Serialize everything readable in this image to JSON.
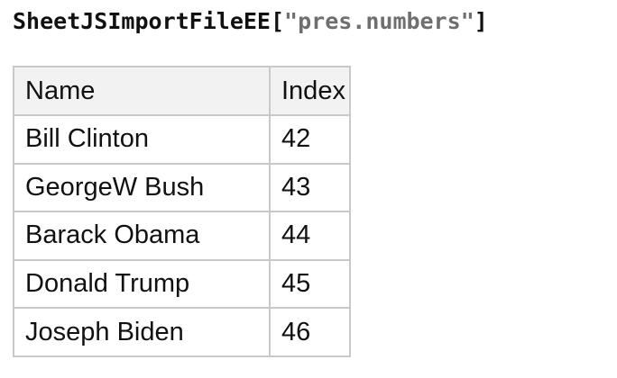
{
  "title": {
    "prefix": "SheetJSImportFileEE",
    "bracket_open": "[",
    "string_value": "\"pres.numbers\"",
    "bracket_close": "]"
  },
  "colors": {
    "page_bg": "#ffffff",
    "title_text": "#111111",
    "title_string_text": "#6f6f6f",
    "table_border": "#c9c9c9",
    "header_bg": "#f2f2f2",
    "cell_bg": "#ffffff",
    "body_text": "#111111"
  },
  "table": {
    "columns": [
      "Name",
      "Index"
    ],
    "rows": [
      {
        "name": "Bill Clinton",
        "index": "42"
      },
      {
        "name": "GeorgeW Bush",
        "index": "43"
      },
      {
        "name": "Barack Obama",
        "index": "44"
      },
      {
        "name": "Donald Trump",
        "index": "45"
      },
      {
        "name": "Joseph Biden",
        "index": "46"
      }
    ]
  }
}
